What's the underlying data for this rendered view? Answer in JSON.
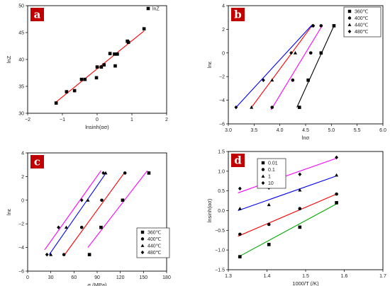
{
  "chart_data": [
    {
      "panel": "a",
      "type": "scatter",
      "xlabel": "lnsinh(ασ)",
      "ylabel": "lnZ",
      "xlim": [
        -2,
        2
      ],
      "ylim": [
        30,
        50
      ],
      "xticks": [
        -2,
        -1,
        0,
        1,
        2
      ],
      "yticks": [
        30,
        35,
        40,
        45,
        50
      ],
      "tick_labels_x": [
        "−2",
        "−1",
        "0",
        "1",
        "2"
      ],
      "tick_labels_y": [
        "30",
        "35",
        "40",
        "45",
        "50"
      ],
      "legend": {
        "position": "top-right",
        "entries": [
          {
            "label": "lnZ",
            "marker": "square"
          }
        ]
      },
      "series": [
        {
          "name": "lnZ",
          "marker": "square",
          "color": "#000000",
          "points": [
            [
              -1.18,
              31.9
            ],
            [
              -0.88,
              34.0
            ],
            [
              -0.65,
              34.2
            ],
            [
              -0.45,
              36.3
            ],
            [
              -0.35,
              36.3
            ],
            [
              -0.02,
              36.6
            ],
            [
              0.0,
              38.6
            ],
            [
              0.12,
              38.6
            ],
            [
              0.2,
              39.0
            ],
            [
              0.37,
              41.1
            ],
            [
              0.5,
              41.0
            ],
            [
              0.52,
              38.8
            ],
            [
              0.58,
              41.0
            ],
            [
              0.87,
              43.4
            ],
            [
              0.9,
              43.2
            ],
            [
              1.35,
              45.7
            ]
          ],
          "fit": {
            "color": "#ff0000",
            "from": [
              -1.2,
              32.0
            ],
            "to": [
              1.35,
              45.3
            ]
          }
        }
      ]
    },
    {
      "panel": "b",
      "type": "scatter",
      "xlabel": "lnσ",
      "ylabel": "lnε",
      "xlim": [
        3.0,
        6.0
      ],
      "ylim": [
        -6,
        4
      ],
      "xticks": [
        3.0,
        3.5,
        4.0,
        4.5,
        5.0,
        5.5,
        6.0
      ],
      "yticks": [
        -6,
        -4,
        -2,
        0,
        2,
        4
      ],
      "tick_labels_x": [
        "3.0",
        "3.5",
        "4.0",
        "4.5",
        "5.0",
        "5.5",
        "6.0"
      ],
      "tick_labels_y": [
        "−6",
        "−4",
        "−2",
        "0",
        "2",
        "4"
      ],
      "legend": {
        "position": "top-right"
      },
      "series": [
        {
          "name": "360℃",
          "marker": "square",
          "color": "#000000",
          "points": [
            [
              4.38,
              -4.6
            ],
            [
              4.55,
              -2.3
            ],
            [
              4.8,
              0.0
            ],
            [
              5.05,
              2.3
            ]
          ],
          "fit": {
            "color": "#000000",
            "from": [
              4.33,
              -4.6
            ],
            "to": [
              5.05,
              2.3
            ]
          }
        },
        {
          "name": "400℃",
          "marker": "circle",
          "color": "#000000",
          "points": [
            [
              3.85,
              -4.6
            ],
            [
              4.25,
              -2.3
            ],
            [
              4.6,
              0.0
            ],
            [
              4.8,
              2.3
            ]
          ],
          "fit": {
            "color": "#ff00ff",
            "from": [
              3.83,
              -4.8
            ],
            "to": [
              4.82,
              2.3
            ]
          }
        },
        {
          "name": "440℃",
          "marker": "triangle",
          "color": "#000000",
          "points": [
            [
              3.45,
              -4.6
            ],
            [
              3.85,
              -2.3
            ],
            [
              4.3,
              0.0
            ],
            [
              4.63,
              2.3
            ]
          ],
          "fit": {
            "color": "#ff0000",
            "from": [
              3.45,
              -4.6
            ],
            "to": [
              4.63,
              2.35
            ]
          }
        },
        {
          "name": "480℃",
          "marker": "diamond",
          "color": "#000000",
          "points": [
            [
              3.15,
              -4.6
            ],
            [
              3.68,
              -2.3
            ],
            [
              4.22,
              0.0
            ],
            [
              4.65,
              2.3
            ]
          ],
          "fit": {
            "color": "#0000ff",
            "from": [
              3.15,
              -4.6
            ],
            "to": [
              4.62,
              2.35
            ]
          }
        }
      ]
    },
    {
      "panel": "c",
      "type": "scatter",
      "xlabel": "σ (MPa)",
      "ylabel": "lnε",
      "xlim": [
        0,
        180
      ],
      "ylim": [
        -6,
        4
      ],
      "xticks": [
        0,
        30,
        60,
        90,
        120,
        150,
        180
      ],
      "yticks": [
        -6,
        -4,
        -2,
        0,
        2,
        4
      ],
      "tick_labels_x": [
        "0",
        "30",
        "60",
        "90",
        "120",
        "150",
        "180"
      ],
      "tick_labels_y": [
        "−6",
        "−4",
        "−2",
        "0",
        "2",
        "4"
      ],
      "legend": {
        "position": "bottom-right"
      },
      "series": [
        {
          "name": "360℃",
          "marker": "square",
          "color": "#000000",
          "points": [
            [
              80,
              -4.6
            ],
            [
              95,
              -2.3
            ],
            [
              123,
              0.0
            ],
            [
              157,
              2.3
            ]
          ],
          "fit": {
            "color": "#ff00ff",
            "from": [
              78,
              -4.0
            ],
            "to": [
              155,
              2.5
            ]
          }
        },
        {
          "name": "400℃",
          "marker": "circle",
          "color": "#000000",
          "points": [
            [
              47,
              -4.6
            ],
            [
              70,
              -2.3
            ],
            [
              96,
              0.0
            ],
            [
              126,
              2.3
            ]
          ],
          "fit": {
            "color": "#ff0000",
            "from": [
              48,
              -4.6
            ],
            "to": [
              125,
              2.3
            ]
          }
        },
        {
          "name": "440℃",
          "marker": "triangle",
          "color": "#000000",
          "points": [
            [
              30,
              -4.6
            ],
            [
              50,
              -2.3
            ],
            [
              78,
              0.0
            ],
            [
              101,
              2.3
            ]
          ],
          "fit": {
            "color": "#0000ff",
            "from": [
              28,
              -4.6
            ],
            "to": [
              102,
              2.35
            ]
          }
        },
        {
          "name": "480℃",
          "marker": "diamond",
          "color": "#000000",
          "points": [
            [
              25,
              -4.6
            ],
            [
              40,
              -2.3
            ],
            [
              70,
              0.0
            ],
            [
              98,
              2.3
            ]
          ],
          "fit": {
            "color": "#ff00ff",
            "from": [
              22,
              -4.2
            ],
            "to": [
              95,
              2.5
            ]
          }
        }
      ]
    },
    {
      "panel": "d",
      "type": "scatter",
      "xlabel": "1000/T (/K)",
      "ylabel": "lnsinh(ασ)",
      "xlim": [
        1.3,
        1.7
      ],
      "ylim": [
        -1.5,
        1.5
      ],
      "xticks": [
        1.3,
        1.4,
        1.5,
        1.6,
        1.7
      ],
      "yticks": [
        -1.5,
        -1.0,
        -0.5,
        0.0,
        0.5,
        1.0,
        1.5
      ],
      "tick_labels_x": [
        "1.3",
        "1.4",
        "1.5",
        "1.6",
        "1.7"
      ],
      "tick_labels_y": [
        "−1.5",
        "−1.0",
        "−0.5",
        "0.0",
        "0.5",
        "1.0",
        "1.5"
      ],
      "legend": {
        "position": "top-left"
      },
      "series": [
        {
          "name": "0.01",
          "marker": "square",
          "color": "#000000",
          "points": [
            [
              1.33,
              -1.17
            ],
            [
              1.405,
              -0.86
            ],
            [
              1.485,
              -0.42
            ],
            [
              1.58,
              0.2
            ]
          ],
          "fit": {
            "color": "#00aa00",
            "from": [
              1.325,
              -1.18
            ],
            "to": [
              1.58,
              0.17
            ]
          }
        },
        {
          "name": "0.1",
          "marker": "circle",
          "color": "#000000",
          "points": [
            [
              1.33,
              -0.6
            ],
            [
              1.405,
              -0.35
            ],
            [
              1.485,
              0.05
            ],
            [
              1.58,
              0.42
            ]
          ],
          "fit": {
            "color": "#ff0000",
            "from": [
              1.325,
              -0.65
            ],
            "to": [
              1.58,
              0.42
            ]
          }
        },
        {
          "name": "1",
          "marker": "triangle",
          "color": "#000000",
          "points": [
            [
              1.33,
              0.05
            ],
            [
              1.405,
              0.15
            ],
            [
              1.485,
              0.52
            ],
            [
              1.58,
              0.9
            ]
          ],
          "fit": {
            "color": "#0000ff",
            "from": [
              1.325,
              0.0
            ],
            "to": [
              1.58,
              0.88
            ]
          }
        },
        {
          "name": "10",
          "marker": "diamond",
          "color": "#000000",
          "points": [
            [
              1.33,
              0.56
            ],
            [
              1.405,
              0.58
            ],
            [
              1.485,
              0.92
            ],
            [
              1.58,
              1.35
            ]
          ],
          "fit": {
            "color": "#ff00ff",
            "from": [
              1.325,
              0.45
            ],
            "to": [
              1.58,
              1.33
            ]
          }
        }
      ]
    }
  ],
  "colors": {
    "panel_tag_bg": "#c00000",
    "panel_tag_text": "#ffffff"
  }
}
